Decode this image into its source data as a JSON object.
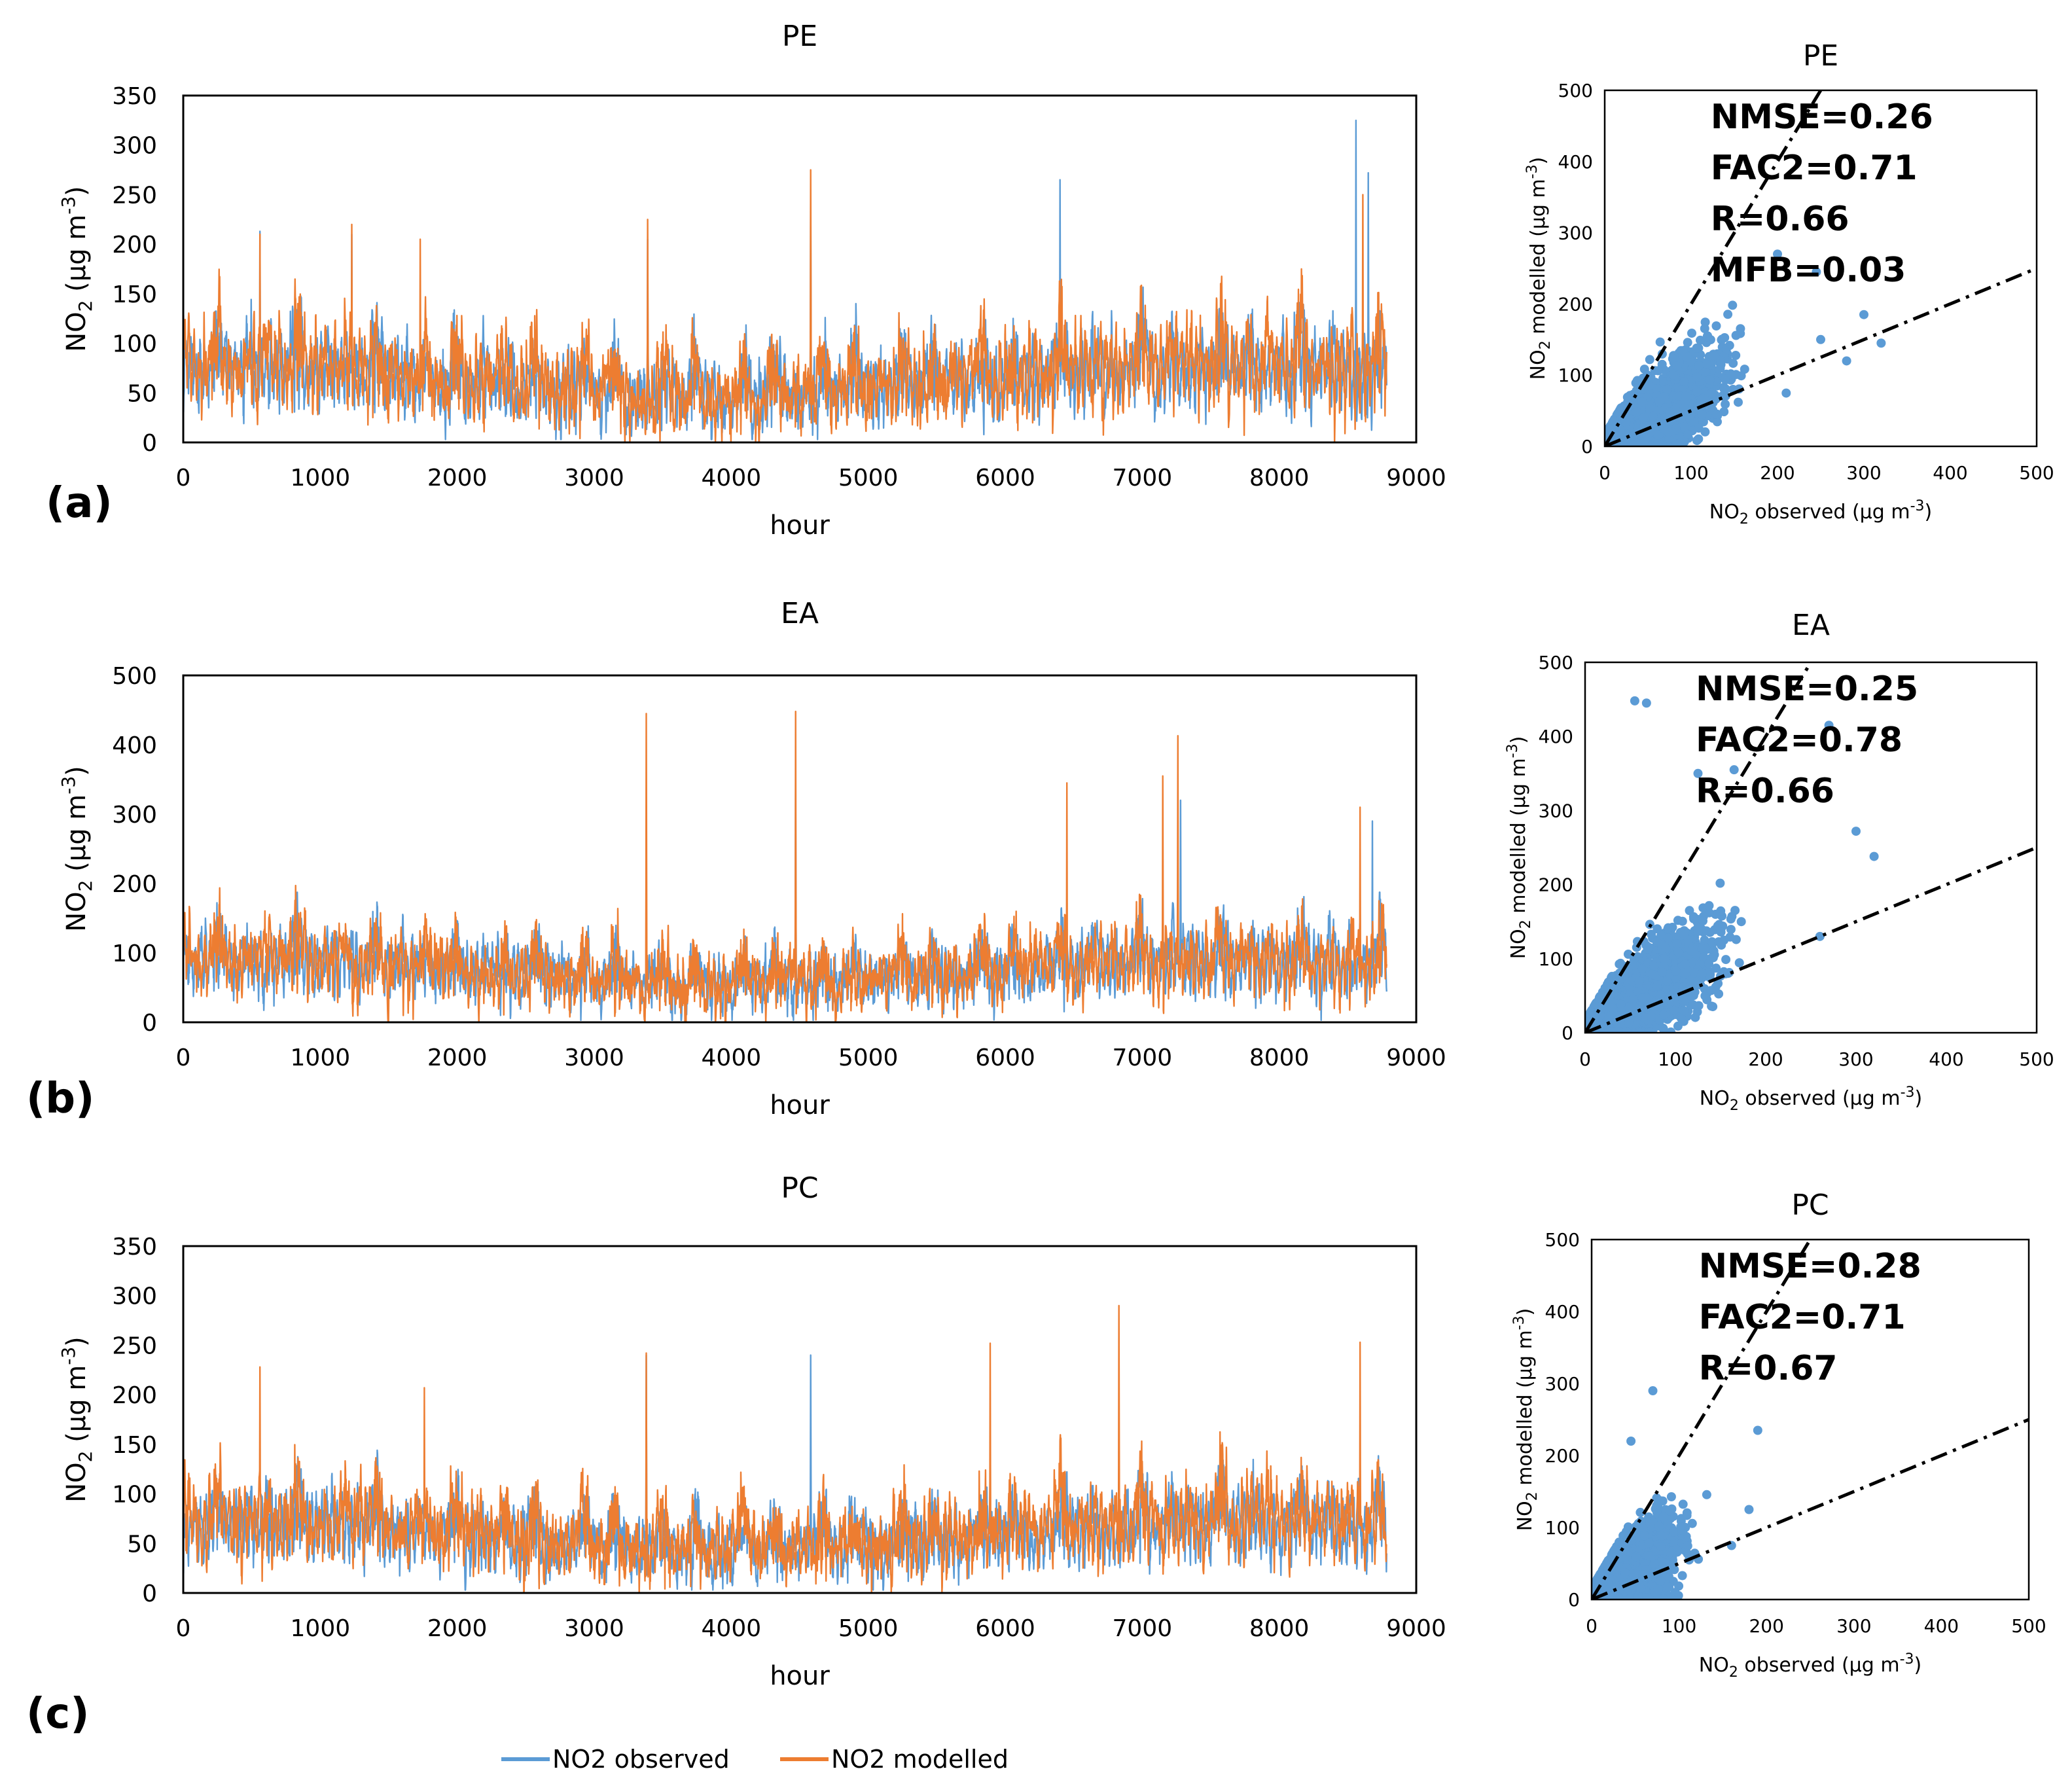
{
  "colors": {
    "observed": "#5B9BD5",
    "modelled": "#ED7D31",
    "frame": "#000000"
  },
  "legend": {
    "observed": "NO2 observed",
    "modelled": "NO2 modelled"
  },
  "ts_axis": {
    "xlabel": "hour",
    "ylabel_main": "NO",
    "ylabel_sub": "2",
    "ylabel_unit_pre": " (µg m",
    "ylabel_unit_sup": "-3",
    "ylabel_unit_post": ")"
  },
  "sc_axis": {
    "xlabel_main": "NO",
    "xlabel_sub": "2",
    "xlabel_rest": " observed (µg m",
    "xlabel_sup": "-3",
    "xlabel_post": ")",
    "ylabel_main": "NO",
    "ylabel_sub": "2",
    "ylabel_rest": " modelled (µg m",
    "ylabel_sup": "-3",
    "ylabel_post": ")"
  },
  "chart_data": [
    {
      "panel": "(a)",
      "title": "PE",
      "type": "line",
      "xlim": [
        0,
        9000
      ],
      "ylim": [
        0,
        350
      ],
      "xticks": [
        0,
        1000,
        2000,
        3000,
        4000,
        5000,
        6000,
        7000,
        8000,
        9000
      ],
      "yticks": [
        0,
        50,
        100,
        150,
        200,
        250,
        300,
        350
      ],
      "n_hours": 8784,
      "series": [
        {
          "name": "NO2 observed",
          "typical_range": [
            5,
            130
          ],
          "peaks": [
            [
              560,
              213
            ],
            [
              1230,
              210
            ],
            [
              3390,
              205
            ],
            [
              4580,
              245
            ],
            [
              6400,
              265
            ],
            [
              8560,
              325
            ],
            [
              8650,
              272
            ]
          ]
        },
        {
          "name": "NO2 modelled",
          "typical_range": [
            0,
            140
          ],
          "peaks": [
            [
              560,
              210
            ],
            [
              1230,
              220
            ],
            [
              1730,
              205
            ],
            [
              3390,
              225
            ],
            [
              4580,
              275
            ],
            [
              8610,
              250
            ]
          ]
        }
      ]
    },
    {
      "panel": "(b)",
      "title": "EA",
      "type": "line",
      "xlim": [
        0,
        9000
      ],
      "ylim": [
        0,
        500
      ],
      "xticks": [
        0,
        1000,
        2000,
        3000,
        4000,
        5000,
        6000,
        7000,
        8000,
        9000
      ],
      "yticks": [
        0,
        100,
        200,
        300,
        400,
        500
      ],
      "n_hours": 8784,
      "series": [
        {
          "name": "NO2 observed",
          "typical_range": [
            10,
            150
          ],
          "peaks": [
            [
              4470,
              350
            ],
            [
              7280,
              320
            ],
            [
              8680,
              290
            ]
          ]
        },
        {
          "name": "NO2 modelled",
          "typical_range": [
            0,
            160
          ],
          "peaks": [
            [
              3380,
              445
            ],
            [
              4470,
              448
            ],
            [
              7150,
              355
            ],
            [
              7260,
              413
            ],
            [
              6450,
              345
            ],
            [
              8590,
              310
            ]
          ]
        }
      ]
    },
    {
      "panel": "(c)",
      "title": "PC",
      "type": "line",
      "xlim": [
        0,
        9000
      ],
      "ylim": [
        0,
        350
      ],
      "xticks": [
        0,
        1000,
        2000,
        3000,
        4000,
        5000,
        6000,
        7000,
        8000,
        9000
      ],
      "yticks": [
        0,
        50,
        100,
        150,
        200,
        250,
        300,
        350
      ],
      "n_hours": 8784,
      "series": [
        {
          "name": "NO2 observed",
          "typical_range": [
            5,
            120
          ],
          "peaks": [
            [
              3380,
              240
            ],
            [
              4580,
              240
            ]
          ]
        },
        {
          "name": "NO2 modelled",
          "typical_range": [
            0,
            130
          ],
          "peaks": [
            [
              560,
              228
            ],
            [
              1760,
              207
            ],
            [
              3380,
              242
            ],
            [
              5890,
              252
            ],
            [
              6830,
              290
            ],
            [
              8590,
              253
            ]
          ]
        }
      ]
    },
    {
      "panel": "(a)",
      "title": "PE",
      "type": "scatter",
      "xlim": [
        0,
        500
      ],
      "ylim": [
        0,
        500
      ],
      "xticks": [
        0,
        100,
        200,
        300,
        400,
        500
      ],
      "yticks": [
        0,
        100,
        200,
        300,
        400,
        500
      ],
      "reference_lines": [
        "y = 2x",
        "y = 0.5x"
      ],
      "cloud": {
        "x_center": 70,
        "x_spread": 60,
        "y_spread_ratio": 0.55
      },
      "outliers": [
        [
          250,
          150
        ],
        [
          300,
          185
        ],
        [
          320,
          145
        ],
        [
          280,
          120
        ],
        [
          245,
          245
        ],
        [
          200,
          270
        ]
      ],
      "stats": [
        "NMSE=0.26",
        "FAC2=0.71",
        "R=0.66",
        "MFB=0.03"
      ]
    },
    {
      "panel": "(b)",
      "title": "EA",
      "type": "scatter",
      "xlim": [
        0,
        500
      ],
      "ylim": [
        0,
        500
      ],
      "xticks": [
        0,
        100,
        200,
        300,
        400,
        500
      ],
      "yticks": [
        0,
        100,
        200,
        300,
        400,
        500
      ],
      "reference_lines": [
        "y = 2x",
        "y = 0.5x"
      ],
      "cloud": {
        "x_center": 75,
        "x_spread": 60,
        "y_spread_ratio": 0.55
      },
      "outliers": [
        [
          55,
          448
        ],
        [
          68,
          445
        ],
        [
          270,
          415
        ],
        [
          300,
          272
        ],
        [
          320,
          238
        ],
        [
          125,
          350
        ],
        [
          165,
          355
        ],
        [
          260,
          130
        ]
      ],
      "stats": [
        "NMSE=0.25",
        "FAC2=0.78",
        "R=0.66"
      ]
    },
    {
      "panel": "(c)",
      "title": "PC",
      "type": "scatter",
      "xlim": [
        0,
        500
      ],
      "ylim": [
        0,
        500
      ],
      "xticks": [
        0,
        100,
        200,
        300,
        400,
        500
      ],
      "yticks": [
        0,
        100,
        200,
        300,
        400,
        500
      ],
      "reference_lines": [
        "y = 2x",
        "y = 0.5x"
      ],
      "cloud": {
        "x_center": 55,
        "x_spread": 40,
        "y_spread_ratio": 0.6
      },
      "outliers": [
        [
          190,
          235
        ],
        [
          180,
          125
        ],
        [
          70,
          290
        ],
        [
          45,
          220
        ],
        [
          160,
          75
        ]
      ],
      "stats": [
        "NMSE=0.28",
        "FAC2=0.71",
        "R=0.67"
      ]
    }
  ]
}
